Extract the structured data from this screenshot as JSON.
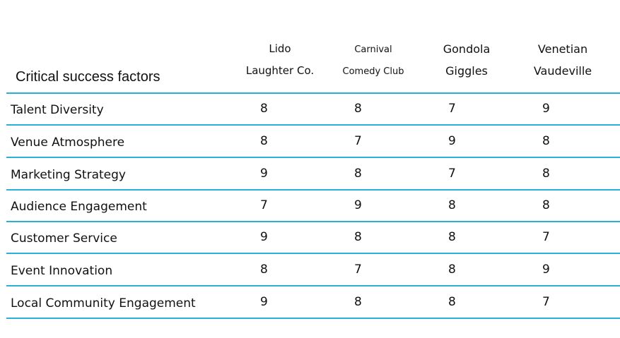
{
  "chart_data": {
    "type": "table",
    "title": "",
    "header_label": "Critical success factors",
    "columns": [
      {
        "line1": "Lido",
        "line2": "Laughter Co."
      },
      {
        "line1": "Carnival",
        "line2": "Comedy Club"
      },
      {
        "line1": "Gondola",
        "line2": "Giggles"
      },
      {
        "line1": "Venetian",
        "line2": "Vaudeville"
      }
    ],
    "rows": [
      {
        "label": "Talent Diversity",
        "values": [
          8,
          8,
          7,
          9
        ]
      },
      {
        "label": "Venue Atmosphere",
        "values": [
          8,
          7,
          9,
          8
        ]
      },
      {
        "label": "Marketing Strategy",
        "values": [
          9,
          8,
          7,
          8
        ]
      },
      {
        "label": "Audience Engagement",
        "values": [
          7,
          9,
          8,
          8
        ]
      },
      {
        "label": "Customer Service",
        "values": [
          9,
          8,
          8,
          7
        ]
      },
      {
        "label": "Event Innovation",
        "values": [
          8,
          7,
          8,
          9
        ]
      },
      {
        "label": "Local Community Engagement",
        "values": [
          9,
          8,
          8,
          7
        ]
      }
    ],
    "line_color": "#2bb0d6"
  }
}
